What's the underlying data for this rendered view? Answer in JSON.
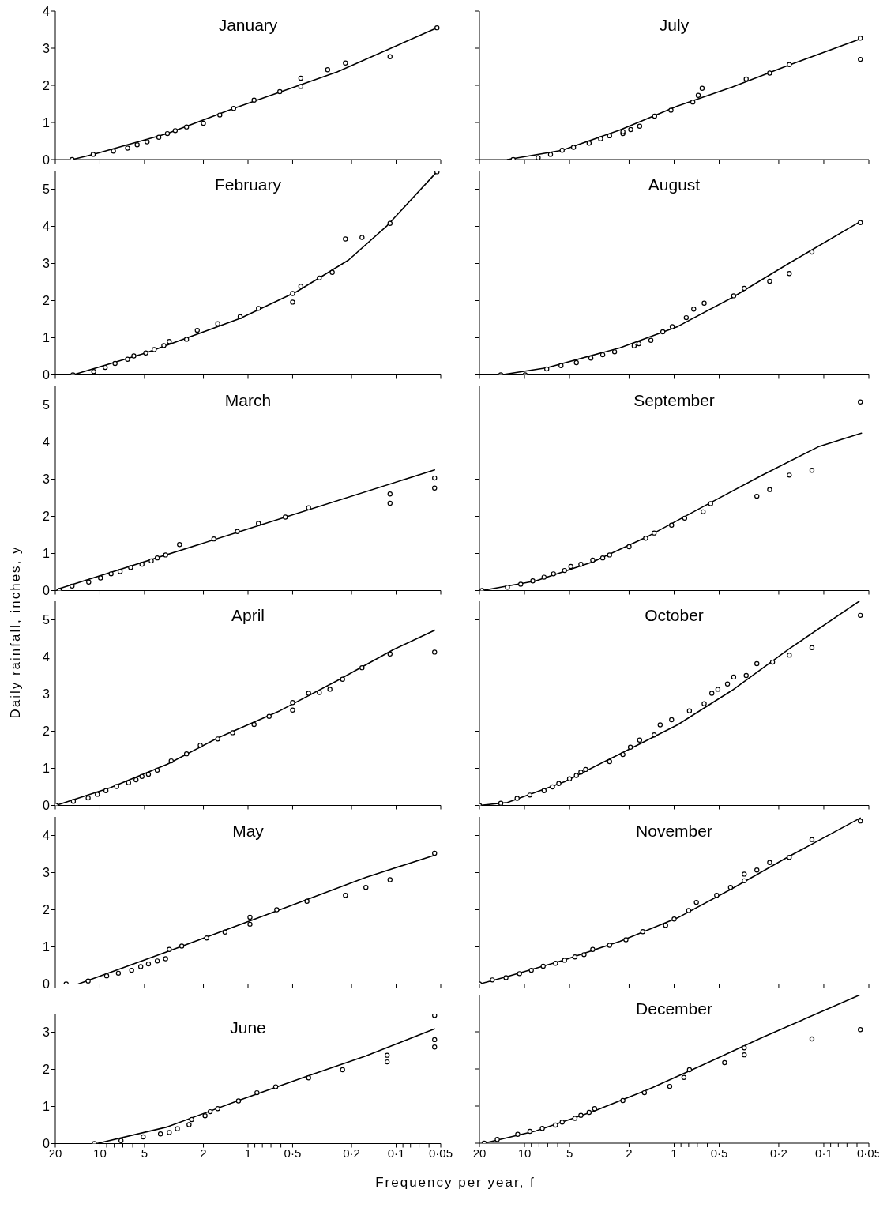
{
  "chart_data": [
    {
      "type": "scatter",
      "title": "January",
      "log": "x",
      "xlim": [
        20,
        0.05
      ],
      "xticks": [
        20,
        10,
        5,
        2,
        1,
        0.5,
        0.2,
        0.1,
        0.05
      ],
      "ylim": [
        0,
        4
      ],
      "yticks": [
        0,
        1,
        2,
        3,
        4
      ],
      "tick_labels": "y",
      "series": [
        {
          "marker": "circle",
          "color": "#000000",
          "x": [
            15.4,
            11.1,
            8.1,
            6.5,
            5.6,
            4.8,
            4.0,
            3.5,
            3.1,
            2.6,
            2.0,
            1.55,
            1.25,
            0.91,
            0.61,
            0.44,
            0.44,
            0.29,
            0.22,
            0.11,
            0.053
          ],
          "values": [
            0,
            0.14,
            0.23,
            0.31,
            0.4,
            0.48,
            0.6,
            0.7,
            0.78,
            0.88,
            0.98,
            1.2,
            1.38,
            1.6,
            1.83,
            2.19,
            1.97,
            2.42,
            2.6,
            2.77,
            3.55
          ]
        },
        {
          "type": "line",
          "marker": "none",
          "color": "#000000",
          "x": [
            15.4,
            11.1,
            3.5,
            1.25,
            0.25,
            0.053
          ],
          "values": [
            0,
            0.14,
            0.7,
            1.38,
            2.36,
            3.55
          ]
        }
      ]
    },
    {
      "type": "scatter",
      "title": "July",
      "log": "x",
      "xlim": [
        20,
        0.05
      ],
      "xticks": [
        20,
        10,
        5,
        2,
        1,
        0.5,
        0.2,
        0.1,
        0.05
      ],
      "ylim": [
        0,
        4
      ],
      "yticks": [
        0,
        1,
        2,
        3,
        4
      ],
      "tick_labels": false,
      "series": [
        {
          "marker": "circle",
          "color": "#000000",
          "x": [
            11.9,
            8.1,
            6.7,
            5.6,
            4.7,
            3.7,
            3.1,
            2.7,
            2.2,
            2.2,
            1.95,
            1.7,
            1.35,
            1.05,
            0.75,
            0.69,
            0.65,
            0.33,
            0.23,
            0.17,
            0.057,
            0.057
          ],
          "values": [
            0,
            0.05,
            0.14,
            0.25,
            0.33,
            0.44,
            0.56,
            0.64,
            0.7,
            0.75,
            0.81,
            0.9,
            1.17,
            1.33,
            1.55,
            1.73,
            1.92,
            2.17,
            2.33,
            2.56,
            3.27,
            2.7
          ]
        },
        {
          "type": "line",
          "marker": "none",
          "color": "#000000",
          "x": [
            13,
            5.6,
            2.3,
            0.95,
            0.41,
            0.17,
            0.057
          ],
          "values": [
            0,
            0.25,
            0.8,
            1.44,
            1.95,
            2.55,
            3.25
          ]
        }
      ]
    },
    {
      "type": "scatter",
      "title": "February",
      "log": "x",
      "xlim": [
        20,
        0.05
      ],
      "xticks": [
        20,
        10,
        5,
        2,
        1,
        0.5,
        0.2,
        0.1,
        0.05
      ],
      "ylim": [
        0,
        5.5
      ],
      "yticks": [
        0,
        1,
        2,
        3,
        4,
        5
      ],
      "tick_labels": "y",
      "series": [
        {
          "marker": "circle",
          "color": "#000000",
          "x": [
            15.2,
            11.0,
            9.2,
            7.9,
            6.5,
            5.9,
            4.9,
            4.3,
            3.7,
            3.4,
            2.6,
            2.2,
            1.6,
            1.13,
            0.85,
            0.5,
            0.5,
            0.44,
            0.33,
            0.27,
            0.22,
            0.17,
            0.11,
            0.053
          ],
          "values": [
            0,
            0.09,
            0.2,
            0.31,
            0.42,
            0.51,
            0.59,
            0.68,
            0.79,
            0.9,
            0.96,
            1.2,
            1.38,
            1.57,
            1.79,
            2.19,
            1.96,
            2.39,
            2.61,
            2.76,
            3.66,
            3.7,
            4.08,
            5.47
          ]
        },
        {
          "type": "line",
          "marker": "none",
          "color": "#000000",
          "x": [
            15.2,
            4.9,
            1.13,
            0.47,
            0.21,
            0.115,
            0.053
          ],
          "values": [
            0,
            0.59,
            1.52,
            2.24,
            3.09,
            4.02,
            5.47
          ]
        }
      ]
    },
    {
      "type": "scatter",
      "title": "August",
      "log": "x",
      "xlim": [
        20,
        0.05
      ],
      "xticks": [
        20,
        10,
        5,
        2,
        1,
        0.5,
        0.2,
        0.1,
        0.05
      ],
      "ylim": [
        0,
        5.5
      ],
      "yticks": [
        0,
        1,
        2,
        3,
        4,
        5
      ],
      "tick_labels": false,
      "series": [
        {
          "marker": "circle",
          "color": "#000000",
          "x": [
            14.4,
            9.9,
            7.1,
            5.7,
            4.5,
            3.6,
            3.0,
            2.5,
            1.85,
            1.72,
            1.43,
            1.19,
            1.03,
            0.83,
            0.74,
            0.63,
            0.4,
            0.34,
            0.23,
            0.17,
            0.12,
            0.057
          ],
          "values": [
            0,
            0,
            0.16,
            0.25,
            0.33,
            0.45,
            0.54,
            0.62,
            0.78,
            0.84,
            0.93,
            1.16,
            1.3,
            1.54,
            1.77,
            1.93,
            2.13,
            2.33,
            2.52,
            2.73,
            3.31,
            4.1
          ]
        },
        {
          "type": "line",
          "marker": "none",
          "color": "#000000",
          "x": [
            14.4,
            7.1,
            2.3,
            0.95,
            0.41,
            0.17,
            0.057
          ],
          "values": [
            0,
            0.19,
            0.73,
            1.3,
            2.08,
            3.01,
            4.13
          ]
        }
      ]
    },
    {
      "type": "scatter",
      "title": "March",
      "log": "x",
      "xlim": [
        20,
        0.05
      ],
      "xticks": [
        20,
        10,
        5,
        2,
        1,
        0.5,
        0.2,
        0.1,
        0.05
      ],
      "ylim": [
        0,
        5.5
      ],
      "yticks": [
        0,
        1,
        2,
        3,
        4,
        5
      ],
      "tick_labels": "y",
      "series": [
        {
          "marker": "circle",
          "color": "#000000",
          "x": [
            18.8,
            15.4,
            11.9,
            9.9,
            8.4,
            7.3,
            6.2,
            5.2,
            4.5,
            4.1,
            3.6,
            2.9,
            1.7,
            1.18,
            0.85,
            0.56,
            0.39,
            0.11,
            0.11,
            0.055,
            0.055
          ],
          "values": [
            0,
            0.12,
            0.23,
            0.34,
            0.45,
            0.51,
            0.62,
            0.71,
            0.8,
            0.88,
            0.96,
            1.24,
            1.39,
            1.59,
            1.81,
            1.98,
            2.23,
            2.6,
            2.35,
            3.03,
            2.76
          ]
        },
        {
          "type": "line",
          "marker": "none",
          "color": "#000000",
          "x": [
            19.5,
            1.0,
            0.055
          ],
          "values": [
            0.03,
            1.66,
            3.25
          ]
        }
      ]
    },
    {
      "type": "scatter",
      "title": "September",
      "log": "x",
      "xlim": [
        20,
        0.05
      ],
      "xticks": [
        20,
        10,
        5,
        2,
        1,
        0.5,
        0.2,
        0.1,
        0.05
      ],
      "ylim": [
        0,
        5.5
      ],
      "yticks": [
        0,
        1,
        2,
        3,
        4,
        5
      ],
      "tick_labels": false,
      "series": [
        {
          "marker": "circle",
          "color": "#000000",
          "x": [
            19.2,
            13.0,
            10.6,
            8.8,
            7.4,
            6.4,
            5.4,
            4.9,
            4.2,
            3.5,
            3.0,
            2.7,
            2.0,
            1.55,
            1.36,
            1.04,
            0.85,
            0.64,
            0.57,
            0.28,
            0.23,
            0.17,
            0.12,
            0.057
          ],
          "values": [
            0,
            0.09,
            0.17,
            0.26,
            0.36,
            0.45,
            0.54,
            0.65,
            0.71,
            0.82,
            0.88,
            0.96,
            1.18,
            1.41,
            1.55,
            1.76,
            1.95,
            2.12,
            2.34,
            2.54,
            2.72,
            3.11,
            3.24,
            5.08
          ]
        },
        {
          "type": "line",
          "marker": "none",
          "color": "#000000",
          "x": [
            19.2,
            8.4,
            3.5,
            1.48,
            0.62,
            0.26,
            0.109,
            0.056
          ],
          "values": [
            0,
            0.26,
            0.77,
            1.47,
            2.29,
            3.1,
            3.87,
            4.24
          ]
        }
      ]
    },
    {
      "type": "scatter",
      "title": "April",
      "ylabel": "Daily rainfall, inches, y",
      "log": "x",
      "xlim": [
        20,
        0.05
      ],
      "xticks": [
        20,
        10,
        5,
        2,
        1,
        0.5,
        0.2,
        0.1,
        0.05
      ],
      "ylim": [
        0,
        5.5
      ],
      "yticks": [
        0,
        1,
        2,
        3,
        4,
        5
      ],
      "tick_labels": "y",
      "series": [
        {
          "marker": "circle",
          "color": "#000000",
          "x": [
            19.8,
            15.1,
            12.0,
            10.4,
            9.1,
            7.7,
            6.4,
            5.7,
            5.2,
            4.7,
            4.1,
            3.3,
            2.6,
            2.1,
            1.6,
            1.27,
            0.91,
            0.72,
            0.5,
            0.5,
            0.39,
            0.33,
            0.28,
            0.23,
            0.17,
            0.11,
            0.055
          ],
          "values": [
            0,
            0.11,
            0.2,
            0.3,
            0.4,
            0.51,
            0.61,
            0.69,
            0.78,
            0.84,
            0.95,
            1.2,
            1.39,
            1.62,
            1.79,
            1.96,
            2.18,
            2.4,
            2.77,
            2.57,
            3.02,
            3.04,
            3.13,
            3.4,
            3.71,
            4.08,
            4.13
          ]
        },
        {
          "type": "line",
          "marker": "none",
          "color": "#000000",
          "x": [
            19.8,
            8.5,
            3.5,
            1.6,
            0.61,
            0.25,
            0.105,
            0.055
          ],
          "values": [
            0,
            0.48,
            1.11,
            1.82,
            2.55,
            3.36,
            4.19,
            4.72
          ]
        }
      ]
    },
    {
      "type": "scatter",
      "title": "October",
      "log": "x",
      "xlim": [
        20,
        0.05
      ],
      "xticks": [
        20,
        10,
        5,
        2,
        1,
        0.5,
        0.2,
        0.1,
        0.05
      ],
      "ylim": [
        0,
        5.5
      ],
      "yticks": [
        0,
        1,
        2,
        3,
        4,
        5
      ],
      "tick_labels": false,
      "series": [
        {
          "marker": "circle",
          "color": "#000000",
          "x": [
            20,
            14.4,
            11.2,
            9.2,
            7.4,
            6.5,
            5.9,
            5.0,
            4.5,
            4.2,
            3.9,
            2.7,
            2.2,
            1.96,
            1.7,
            1.36,
            1.24,
            1.04,
            0.79,
            0.63,
            0.56,
            0.51,
            0.44,
            0.4,
            0.33,
            0.28,
            0.22,
            0.17,
            0.12,
            0.057
          ],
          "values": [
            0,
            0.06,
            0.19,
            0.28,
            0.4,
            0.5,
            0.59,
            0.72,
            0.81,
            0.9,
            0.97,
            1.18,
            1.37,
            1.57,
            1.76,
            1.9,
            2.17,
            2.31,
            2.55,
            2.74,
            3.02,
            3.13,
            3.27,
            3.46,
            3.5,
            3.82,
            3.86,
            4.05,
            4.25,
            5.12
          ]
        },
        {
          "type": "line",
          "marker": "none",
          "color": "#000000",
          "x": [
            20,
            13,
            5.4,
            2.3,
            0.95,
            0.41,
            0.17,
            0.058
          ],
          "values": [
            0,
            0.08,
            0.64,
            1.39,
            2.17,
            3.1,
            4.22,
            5.5
          ]
        }
      ]
    },
    {
      "type": "scatter",
      "title": "May",
      "log": "x",
      "xlim": [
        20,
        0.05
      ],
      "xticks": [
        20,
        10,
        5,
        2,
        1,
        0.5,
        0.2,
        0.1,
        0.05
      ],
      "ylim": [
        0,
        4.5
      ],
      "yticks": [
        0,
        1,
        2,
        3,
        4
      ],
      "tick_labels": "y",
      "series": [
        {
          "marker": "circle",
          "color": "#000000",
          "x": [
            16.9,
            12,
            9.0,
            7.5,
            6.1,
            5.3,
            4.7,
            4.1,
            3.6,
            3.4,
            2.8,
            1.9,
            1.43,
            0.97,
            0.97,
            0.64,
            0.4,
            0.22,
            0.16,
            0.11,
            0.055
          ],
          "values": [
            0,
            0.08,
            0.22,
            0.29,
            0.37,
            0.47,
            0.54,
            0.62,
            0.68,
            0.93,
            1.02,
            1.24,
            1.4,
            1.8,
            1.61,
            2.0,
            2.23,
            2.39,
            2.6,
            2.81,
            3.52
          ]
        },
        {
          "type": "line",
          "marker": "none",
          "color": "#000000",
          "x": [
            14,
            3.5,
            0.63,
            0.16,
            0.055
          ],
          "values": [
            0,
            0.87,
            1.98,
            2.87,
            3.47
          ]
        }
      ]
    },
    {
      "type": "scatter",
      "title": "November",
      "log": "x",
      "xlim": [
        20,
        0.05
      ],
      "xticks": [
        20,
        10,
        5,
        2,
        1,
        0.5,
        0.2,
        0.1,
        0.05
      ],
      "ylim": [
        0,
        4.5
      ],
      "yticks": [
        0,
        1,
        2,
        3,
        4
      ],
      "tick_labels": false,
      "series": [
        {
          "marker": "circle",
          "color": "#000000",
          "x": [
            20,
            16.4,
            13.3,
            10.8,
            9,
            7.5,
            6.2,
            5.4,
            4.6,
            4.0,
            3.5,
            2.7,
            2.1,
            1.62,
            1.14,
            1.0,
            0.8,
            0.71,
            0.52,
            0.42,
            0.34,
            0.34,
            0.28,
            0.23,
            0.17,
            0.12,
            0.057
          ],
          "values": [
            0,
            0.11,
            0.17,
            0.28,
            0.37,
            0.48,
            0.56,
            0.64,
            0.73,
            0.79,
            0.93,
            1.04,
            1.19,
            1.41,
            1.58,
            1.75,
            1.98,
            2.2,
            2.39,
            2.6,
            2.78,
            2.96,
            3.07,
            3.27,
            3.41,
            3.89,
            4.39
          ]
        },
        {
          "type": "line",
          "marker": "none",
          "color": "#000000",
          "x": [
            20,
            13,
            5.4,
            2.3,
            0.95,
            0.41,
            0.17,
            0.057
          ],
          "values": [
            0,
            0.2,
            0.65,
            1.15,
            1.78,
            2.57,
            3.44,
            4.47
          ]
        }
      ]
    },
    {
      "type": "scatter",
      "title": "June",
      "xlabel": "Frequency per year, f",
      "log": "x",
      "xlim": [
        20,
        0.05
      ],
      "xticks": [
        20,
        10,
        {
          "value": 9,
          "label": null
        },
        {
          "value": 8,
          "label": null
        },
        {
          "value": 7,
          "label": null
        },
        {
          "value": 6,
          "label": null
        },
        5,
        2,
        1,
        {
          "value": 0.9,
          "label": null
        },
        {
          "value": 0.8,
          "label": null
        },
        {
          "value": 0.7,
          "label": null
        },
        {
          "value": 0.6,
          "label": null
        },
        {
          "value": 0.5,
          "label": "0·5"
        },
        {
          "value": 0.2,
          "label": "0·2"
        },
        {
          "value": 0.1,
          "label": "0·1"
        },
        {
          "value": 0.09,
          "label": null
        },
        {
          "value": 0.08,
          "label": null
        },
        {
          "value": 0.07,
          "label": null
        },
        {
          "value": 0.06,
          "label": null
        },
        {
          "value": 0.05,
          "label": "0·05"
        }
      ],
      "ylim": [
        0,
        3.5
      ],
      "yticks": [
        0,
        1,
        2,
        3
      ],
      "series": [
        {
          "marker": "circle",
          "color": "#000000",
          "x": [
            10.9,
            7.2,
            5.1,
            3.9,
            3.4,
            3.0,
            2.5,
            2.4,
            1.95,
            1.8,
            1.6,
            1.16,
            0.87,
            0.65,
            0.39,
            0.23,
            0.115,
            0.115,
            0.055,
            0.055,
            0.055
          ],
          "values": [
            0,
            0.08,
            0.18,
            0.26,
            0.3,
            0.4,
            0.51,
            0.65,
            0.75,
            0.86,
            0.94,
            1.15,
            1.37,
            1.53,
            1.77,
            1.99,
            2.38,
            2.2,
            3.45,
            2.8,
            2.6
          ]
        },
        {
          "type": "line",
          "marker": "none",
          "color": "#000000",
          "x": [
            10.5,
            3.5,
            1.16,
            0.39,
            0.16,
            0.055
          ],
          "values": [
            0,
            0.45,
            1.16,
            1.83,
            2.36,
            3.09
          ]
        }
      ]
    },
    {
      "type": "scatter",
      "title": "December",
      "log": "x",
      "xlim": [
        20,
        0.05
      ],
      "xticks": [
        20,
        10,
        {
          "value": 9,
          "label": null
        },
        {
          "value": 8,
          "label": null
        },
        {
          "value": 7,
          "label": null
        },
        {
          "value": 6,
          "label": null
        },
        5,
        2,
        1,
        {
          "value": 0.9,
          "label": null
        },
        {
          "value": 0.8,
          "label": null
        },
        {
          "value": 0.7,
          "label": null
        },
        {
          "value": 0.6,
          "label": null
        },
        {
          "value": 0.5,
          "label": "0·5"
        },
        {
          "value": 0.2,
          "label": "0·2"
        },
        {
          "value": 0.1,
          "label": "0·1"
        },
        {
          "value": 0.09,
          "label": null
        },
        {
          "value": 0.08,
          "label": null
        },
        {
          "value": 0.07,
          "label": null
        },
        {
          "value": 0.06,
          "label": null
        },
        {
          "value": 0.05,
          "label": "0·05"
        }
      ],
      "ylim": [
        0,
        4
      ],
      "yticks": [
        0,
        1,
        2,
        3
      ],
      "tick_labels": "x",
      "series": [
        {
          "marker": "circle",
          "color": "#000000",
          "x": [
            18.6,
            15.2,
            11.1,
            9.2,
            7.6,
            6.2,
            5.6,
            4.6,
            4.2,
            3.7,
            3.4,
            2.2,
            1.58,
            1.07,
            0.86,
            0.79,
            0.46,
            0.34,
            0.34,
            0.12,
            0.057
          ],
          "values": [
            0,
            0.1,
            0.24,
            0.32,
            0.4,
            0.49,
            0.57,
            0.67,
            0.75,
            0.83,
            0.93,
            1.15,
            1.36,
            1.53,
            1.77,
            1.98,
            2.17,
            2.38,
            2.57,
            2.81,
            3.06
          ]
        },
        {
          "type": "line",
          "marker": "none",
          "color": "#000000",
          "x": [
            18.6,
            8.4,
            3.5,
            1.48,
            0.62,
            0.26,
            0.057
          ],
          "values": [
            0,
            0.33,
            0.85,
            1.45,
            2.14,
            2.84,
            4.0
          ]
        }
      ]
    }
  ]
}
